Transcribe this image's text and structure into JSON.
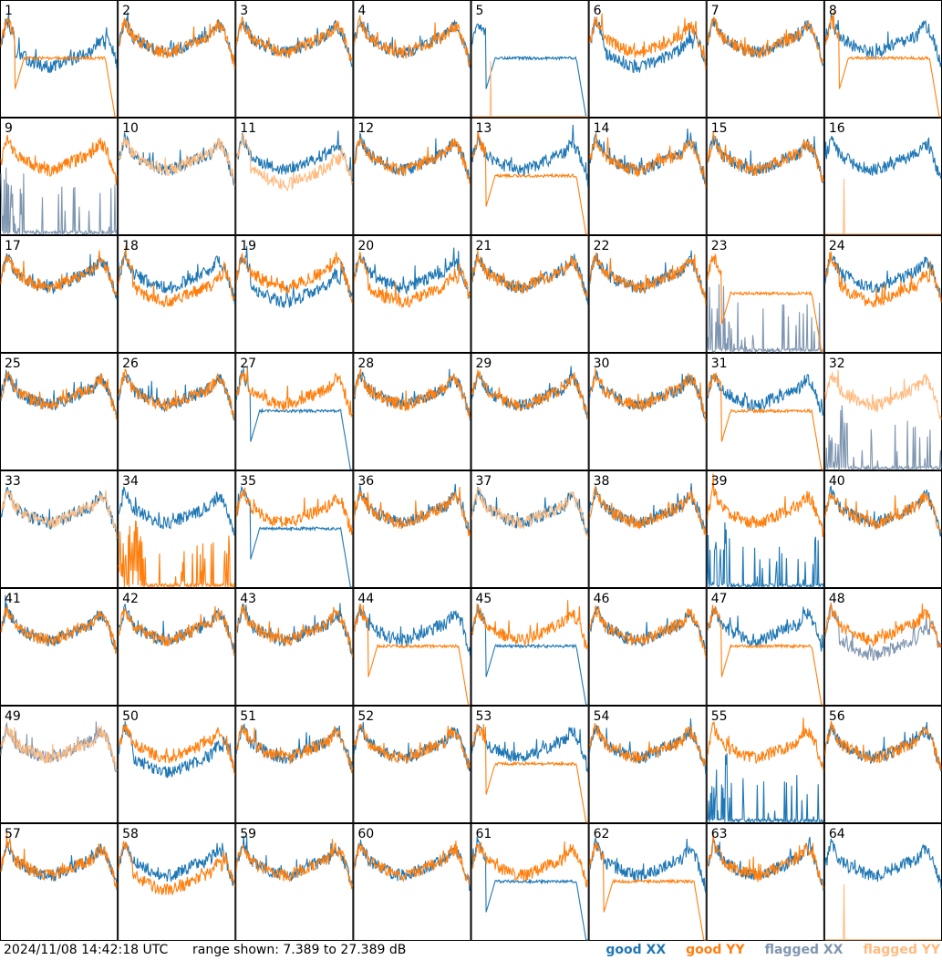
{
  "footer": {
    "timestamp": "2024/11/08 14:42:18 UTC",
    "range_text": "range shown: 7.389 to 27.389 dB"
  },
  "legend": [
    {
      "label": "good XX",
      "color": "#1f77b4"
    },
    {
      "label": "good YY",
      "color": "#ff7f0e"
    },
    {
      "label": "flagged XX",
      "color": "#7f96b0"
    },
    {
      "label": "flagged YY",
      "color": "#ffbb80"
    }
  ],
  "chart_data": {
    "type": "line",
    "title": "",
    "ylabel": "",
    "xlabel": "",
    "ylim": [
      7.389,
      27.389
    ],
    "grid": false,
    "legend_placement": "bottom-right",
    "colors": {
      "good_xx": "#1f77b4",
      "good_yy": "#ff7f0e",
      "flagged_xx": "#7f96b0",
      "flagged_yy": "#ffbb80"
    },
    "panels": [
      {
        "id": "1",
        "xx": "good",
        "yy": "good",
        "xx_shape": "low",
        "yy_shape": "dip"
      },
      {
        "id": "2",
        "xx": "good",
        "yy": "good",
        "xx_shape": "normal",
        "yy_shape": "normal"
      },
      {
        "id": "3",
        "xx": "good",
        "yy": "good",
        "xx_shape": "normal",
        "yy_shape": "normal"
      },
      {
        "id": "4",
        "xx": "good",
        "yy": "good",
        "xx_shape": "normal",
        "yy_shape": "normal"
      },
      {
        "id": "5",
        "xx": "good",
        "yy": "flagged",
        "xx_shape": "dip",
        "yy_shape": "flat"
      },
      {
        "id": "6",
        "xx": "good",
        "yy": "good",
        "xx_shape": "low",
        "yy_shape": "normal"
      },
      {
        "id": "7",
        "xx": "good",
        "yy": "good",
        "xx_shape": "normal",
        "yy_shape": "normal"
      },
      {
        "id": "8",
        "xx": "good",
        "yy": "good",
        "xx_shape": "normal",
        "yy_shape": "dip"
      },
      {
        "id": "9",
        "xx": "flagged",
        "yy": "good",
        "xx_shape": "spiky",
        "yy_shape": "normal"
      },
      {
        "id": "10",
        "xx": "good",
        "yy": "flagged",
        "xx_shape": "normal",
        "yy_shape": "normal"
      },
      {
        "id": "11",
        "xx": "good",
        "yy": "flagged",
        "xx_shape": "normal",
        "yy_shape": "low"
      },
      {
        "id": "12",
        "xx": "good",
        "yy": "good",
        "xx_shape": "normal",
        "yy_shape": "normal"
      },
      {
        "id": "13",
        "xx": "good",
        "yy": "good",
        "xx_shape": "normal",
        "yy_shape": "dip"
      },
      {
        "id": "14",
        "xx": "good",
        "yy": "good",
        "xx_shape": "normal",
        "yy_shape": "normal"
      },
      {
        "id": "15",
        "xx": "good",
        "yy": "good",
        "xx_shape": "normal",
        "yy_shape": "normal"
      },
      {
        "id": "16",
        "xx": "good",
        "yy": "flagged",
        "xx_shape": "normal",
        "yy_shape": "flat"
      },
      {
        "id": "17",
        "xx": "good",
        "yy": "good",
        "xx_shape": "normal",
        "yy_shape": "normal"
      },
      {
        "id": "18",
        "xx": "good",
        "yy": "good",
        "xx_shape": "normal",
        "yy_shape": "low"
      },
      {
        "id": "19",
        "xx": "good",
        "yy": "good",
        "xx_shape": "low",
        "yy_shape": "normal"
      },
      {
        "id": "20",
        "xx": "good",
        "yy": "good",
        "xx_shape": "normal",
        "yy_shape": "low"
      },
      {
        "id": "21",
        "xx": "good",
        "yy": "good",
        "xx_shape": "normal",
        "yy_shape": "normal"
      },
      {
        "id": "22",
        "xx": "good",
        "yy": "good",
        "xx_shape": "normal",
        "yy_shape": "normal"
      },
      {
        "id": "23",
        "xx": "flagged",
        "yy": "good",
        "xx_shape": "spiky",
        "yy_shape": "dip"
      },
      {
        "id": "24",
        "xx": "good",
        "yy": "good",
        "xx_shape": "normal",
        "yy_shape": "low"
      },
      {
        "id": "25",
        "xx": "good",
        "yy": "good",
        "xx_shape": "normal",
        "yy_shape": "normal"
      },
      {
        "id": "26",
        "xx": "good",
        "yy": "good",
        "xx_shape": "normal",
        "yy_shape": "normal"
      },
      {
        "id": "27",
        "xx": "good",
        "yy": "good",
        "xx_shape": "dip",
        "yy_shape": "normal"
      },
      {
        "id": "28",
        "xx": "good",
        "yy": "good",
        "xx_shape": "normal",
        "yy_shape": "normal"
      },
      {
        "id": "29",
        "xx": "good",
        "yy": "good",
        "xx_shape": "normal",
        "yy_shape": "normal"
      },
      {
        "id": "30",
        "xx": "good",
        "yy": "good",
        "xx_shape": "normal",
        "yy_shape": "normal"
      },
      {
        "id": "31",
        "xx": "good",
        "yy": "good",
        "xx_shape": "normal",
        "yy_shape": "dip"
      },
      {
        "id": "32",
        "xx": "flagged",
        "yy": "flagged",
        "xx_shape": "spiky",
        "yy_shape": "normal"
      },
      {
        "id": "33",
        "xx": "good",
        "yy": "flagged",
        "xx_shape": "normal",
        "yy_shape": "normal"
      },
      {
        "id": "34",
        "xx": "good",
        "yy": "good",
        "xx_shape": "normal",
        "yy_shape": "spiky"
      },
      {
        "id": "35",
        "xx": "good",
        "yy": "good",
        "xx_shape": "dip",
        "yy_shape": "normal"
      },
      {
        "id": "36",
        "xx": "good",
        "yy": "good",
        "xx_shape": "normal",
        "yy_shape": "normal"
      },
      {
        "id": "37",
        "xx": "good",
        "yy": "flagged",
        "xx_shape": "normal",
        "yy_shape": "normal"
      },
      {
        "id": "38",
        "xx": "good",
        "yy": "good",
        "xx_shape": "normal",
        "yy_shape": "normal"
      },
      {
        "id": "39",
        "xx": "good",
        "yy": "good",
        "xx_shape": "spiky",
        "yy_shape": "normal"
      },
      {
        "id": "40",
        "xx": "good",
        "yy": "good",
        "xx_shape": "normal",
        "yy_shape": "normal"
      },
      {
        "id": "41",
        "xx": "good",
        "yy": "good",
        "xx_shape": "normal",
        "yy_shape": "normal"
      },
      {
        "id": "42",
        "xx": "good",
        "yy": "good",
        "xx_shape": "normal",
        "yy_shape": "normal"
      },
      {
        "id": "43",
        "xx": "good",
        "yy": "good",
        "xx_shape": "normal",
        "yy_shape": "normal"
      },
      {
        "id": "44",
        "xx": "good",
        "yy": "good",
        "xx_shape": "normal",
        "yy_shape": "dip"
      },
      {
        "id": "45",
        "xx": "good",
        "yy": "good",
        "xx_shape": "dip",
        "yy_shape": "normal"
      },
      {
        "id": "46",
        "xx": "good",
        "yy": "good",
        "xx_shape": "normal",
        "yy_shape": "normal"
      },
      {
        "id": "47",
        "xx": "good",
        "yy": "good",
        "xx_shape": "normal",
        "yy_shape": "dip"
      },
      {
        "id": "48",
        "xx": "flagged",
        "yy": "good",
        "xx_shape": "low",
        "yy_shape": "normal"
      },
      {
        "id": "49",
        "xx": "flagged",
        "yy": "flagged",
        "xx_shape": "normal",
        "yy_shape": "normal"
      },
      {
        "id": "50",
        "xx": "good",
        "yy": "good",
        "xx_shape": "low",
        "yy_shape": "normal"
      },
      {
        "id": "51",
        "xx": "good",
        "yy": "good",
        "xx_shape": "normal",
        "yy_shape": "normal"
      },
      {
        "id": "52",
        "xx": "good",
        "yy": "good",
        "xx_shape": "normal",
        "yy_shape": "normal"
      },
      {
        "id": "53",
        "xx": "good",
        "yy": "good",
        "xx_shape": "normal",
        "yy_shape": "dip"
      },
      {
        "id": "54",
        "xx": "good",
        "yy": "good",
        "xx_shape": "normal",
        "yy_shape": "normal"
      },
      {
        "id": "55",
        "xx": "good",
        "yy": "good",
        "xx_shape": "spiky",
        "yy_shape": "normal"
      },
      {
        "id": "56",
        "xx": "good",
        "yy": "good",
        "xx_shape": "normal",
        "yy_shape": "normal"
      },
      {
        "id": "57",
        "xx": "good",
        "yy": "good",
        "xx_shape": "normal",
        "yy_shape": "normal"
      },
      {
        "id": "58",
        "xx": "good",
        "yy": "good",
        "xx_shape": "normal",
        "yy_shape": "low"
      },
      {
        "id": "59",
        "xx": "good",
        "yy": "good",
        "xx_shape": "normal",
        "yy_shape": "normal"
      },
      {
        "id": "60",
        "xx": "good",
        "yy": "good",
        "xx_shape": "normal",
        "yy_shape": "normal"
      },
      {
        "id": "61",
        "xx": "good",
        "yy": "good",
        "xx_shape": "dip",
        "yy_shape": "normal"
      },
      {
        "id": "62",
        "xx": "good",
        "yy": "good",
        "xx_shape": "normal",
        "yy_shape": "dip"
      },
      {
        "id": "63",
        "xx": "good",
        "yy": "good",
        "xx_shape": "normal",
        "yy_shape": "normal"
      },
      {
        "id": "64",
        "xx": "good",
        "yy": "flagged",
        "xx_shape": "normal",
        "yy_shape": "flat"
      }
    ]
  }
}
